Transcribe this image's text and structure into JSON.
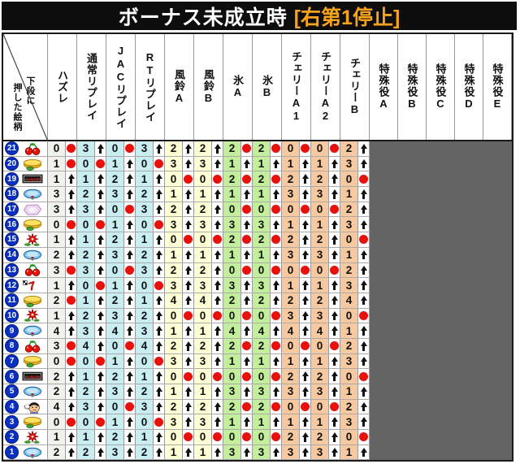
{
  "title": {
    "main": "ボーナス未成立時",
    "bracket": "[右第1停止]"
  },
  "corner_header": {
    "line_right": "下段に",
    "line_left": "押した絵柄",
    "full": "下段に押した絵柄"
  },
  "colors": {
    "title_bg": "#0d0d0d",
    "title_text": "#ffffff",
    "title_accent": "#f7a31c",
    "frame": "#1a1a1a",
    "grid": "#9a9a9a",
    "row_line": "#ababab",
    "header_bg": "#ffffff",
    "label_bg": "#ffffff",
    "mark_bg": "#ffffff",
    "disabled_area": "#646464",
    "dot": "#e8120c",
    "arrow": "#111111",
    "badge_bg": "#0a2fc4",
    "badge_text": "#ffffff"
  },
  "mark_glyphs": {
    "dot": "●",
    "arrow": "↑"
  },
  "chart_data": {
    "type": "table",
    "title": "ボーナス未成立時 [右第1停止]",
    "corner": "下段に押した絵柄",
    "columns": [
      {
        "id": "hazure",
        "label": "ハズレ",
        "bg": "#f1f1ed"
      },
      {
        "id": "tsujo-replay",
        "label": "通常リプレイ",
        "bg": "#c9eef2"
      },
      {
        "id": "jac-replay",
        "label": "JACリプレイ",
        "bg": "#c9eef2"
      },
      {
        "id": "rt-replay",
        "label": "RTリプレイ",
        "bg": "#c9eef2"
      },
      {
        "id": "furin-a",
        "label": "風鈴A",
        "bg": "#ffffd6"
      },
      {
        "id": "furin-b",
        "label": "風鈴B",
        "bg": "#ffffd6"
      },
      {
        "id": "koori-a",
        "label": "氷A",
        "bg": "#c3ee9c"
      },
      {
        "id": "koori-b",
        "label": "氷B",
        "bg": "#c3ee9c"
      },
      {
        "id": "cherry-a1",
        "label": "チェリーA1",
        "bg": "#f6c9a0"
      },
      {
        "id": "cherry-a2",
        "label": "チェリーA2",
        "bg": "#f6c9a0"
      },
      {
        "id": "cherry-b",
        "label": "チェリーB",
        "bg": "#f6c9a0"
      }
    ],
    "special_columns": [
      {
        "id": "special-a",
        "label": "特殊役A"
      },
      {
        "id": "special-b",
        "label": "特殊役B"
      },
      {
        "id": "special-c",
        "label": "特殊役C"
      },
      {
        "id": "special-d",
        "label": "特殊役D"
      },
      {
        "id": "special-e",
        "label": "特殊役E"
      }
    ],
    "rows": [
      {
        "pos": 21,
        "symbol": "cherry",
        "values": [
          0,
          3,
          0,
          3,
          2,
          2,
          2,
          2,
          0,
          0,
          2
        ],
        "marks": [
          "●",
          "↑",
          "●",
          "↑",
          "↑",
          "↑",
          "●",
          "●",
          "●",
          "●",
          "↑"
        ]
      },
      {
        "pos": 20,
        "symbol": "windchime",
        "values": [
          1,
          0,
          1,
          0,
          3,
          3,
          1,
          1,
          1,
          1,
          3
        ],
        "marks": [
          "●",
          "●",
          "↑",
          "●",
          "↑",
          "↑",
          "↑",
          "↑",
          "↑",
          "↑",
          "↑"
        ]
      },
      {
        "pos": 19,
        "symbol": "hanabi-bar",
        "values": [
          1,
          1,
          2,
          1,
          0,
          0,
          2,
          2,
          2,
          2,
          0
        ],
        "marks": [
          "↑",
          "↑",
          "↑",
          "↑",
          "●",
          "●",
          "●",
          "●",
          "↑",
          "↑",
          "●"
        ]
      },
      {
        "pos": 18,
        "symbol": "replay",
        "values": [
          3,
          2,
          3,
          2,
          1,
          1,
          1,
          1,
          3,
          3,
          1
        ],
        "marks": [
          "↑",
          "↑",
          "↑",
          "↑",
          "↑",
          "↑",
          "↑",
          "↑",
          "↑",
          "↑",
          "↑"
        ]
      },
      {
        "pos": 17,
        "symbol": "ice",
        "values": [
          3,
          3,
          0,
          3,
          2,
          2,
          0,
          0,
          0,
          0,
          2
        ],
        "marks": [
          "↑",
          "↑",
          "●",
          "↑",
          "↑",
          "↑",
          "●",
          "●",
          "●",
          "●",
          "↑"
        ]
      },
      {
        "pos": 16,
        "symbol": "windchime",
        "values": [
          0,
          0,
          1,
          0,
          3,
          3,
          3,
          3,
          1,
          1,
          3
        ],
        "marks": [
          "●",
          "●",
          "↑",
          "●",
          "↑",
          "↑",
          "↑",
          "↑",
          "↑",
          "↑",
          "↑"
        ]
      },
      {
        "pos": 15,
        "symbol": "firework-flower",
        "values": [
          1,
          1,
          2,
          1,
          0,
          0,
          2,
          2,
          2,
          2,
          0
        ],
        "marks": [
          "↑",
          "↑",
          "↑",
          "↑",
          "●",
          "●",
          "●",
          "●",
          "↑",
          "↑",
          "●"
        ]
      },
      {
        "pos": 14,
        "symbol": "replay",
        "values": [
          2,
          2,
          3,
          2,
          1,
          1,
          1,
          1,
          3,
          3,
          1
        ],
        "marks": [
          "↑",
          "↑",
          "↑",
          "↑",
          "↑",
          "↑",
          "↑",
          "↑",
          "↑",
          "↑",
          "↑"
        ]
      },
      {
        "pos": 13,
        "symbol": "cherry",
        "values": [
          3,
          3,
          0,
          3,
          2,
          2,
          0,
          0,
          0,
          0,
          2
        ],
        "marks": [
          "●",
          "↑",
          "●",
          "↑",
          "↑",
          "↑",
          "●",
          "●",
          "●",
          "●",
          "↑"
        ]
      },
      {
        "pos": 12,
        "symbol": "red-seven",
        "values": [
          1,
          0,
          1,
          0,
          3,
          3,
          3,
          3,
          1,
          1,
          3
        ],
        "marks": [
          "↑",
          "●",
          "↑",
          "●",
          "↑",
          "↑",
          "↑",
          "↑",
          "↑",
          "↑",
          "↑"
        ]
      },
      {
        "pos": 11,
        "symbol": "windchime",
        "values": [
          2,
          1,
          2,
          1,
          4,
          4,
          2,
          2,
          2,
          2,
          4
        ],
        "marks": [
          "●",
          "↑",
          "↑",
          "↑",
          "↑",
          "↑",
          "↑",
          "↑",
          "↑",
          "↑",
          "↑"
        ]
      },
      {
        "pos": 10,
        "symbol": "firework-flower",
        "values": [
          1,
          2,
          3,
          2,
          0,
          0,
          0,
          0,
          3,
          3,
          0
        ],
        "marks": [
          "↑",
          "↑",
          "↑",
          "↑",
          "●",
          "●",
          "●",
          "●",
          "↑",
          "↑",
          "●"
        ]
      },
      {
        "pos": 9,
        "symbol": "replay",
        "values": [
          4,
          3,
          4,
          3,
          1,
          1,
          4,
          4,
          4,
          4,
          1
        ],
        "marks": [
          "↑",
          "↑",
          "↑",
          "↑",
          "↑",
          "↑",
          "↑",
          "↑",
          "↑",
          "↑",
          "↑"
        ]
      },
      {
        "pos": 8,
        "symbol": "cherry",
        "values": [
          3,
          4,
          0,
          4,
          2,
          2,
          2,
          2,
          0,
          0,
          2
        ],
        "marks": [
          "●",
          "↑",
          "●",
          "↑",
          "↑",
          "↑",
          "●",
          "●",
          "●",
          "●",
          "↑"
        ]
      },
      {
        "pos": 7,
        "symbol": "windchime",
        "values": [
          0,
          0,
          1,
          0,
          3,
          3,
          1,
          1,
          1,
          1,
          3
        ],
        "marks": [
          "●",
          "●",
          "↑",
          "●",
          "↑",
          "↑",
          "↑",
          "↑",
          "↑",
          "↑",
          "↑"
        ]
      },
      {
        "pos": 6,
        "symbol": "hanabi-bar",
        "values": [
          2,
          1,
          2,
          1,
          0,
          0,
          0,
          0,
          2,
          2,
          0
        ],
        "marks": [
          "↑",
          "↑",
          "↑",
          "↑",
          "●",
          "●",
          "●",
          "●",
          "↑",
          "↑",
          "●"
        ]
      },
      {
        "pos": 5,
        "symbol": "replay",
        "values": [
          2,
          2,
          3,
          2,
          1,
          1,
          3,
          3,
          3,
          3,
          1
        ],
        "marks": [
          "↑",
          "↑",
          "↑",
          "↑",
          "↑",
          "↑",
          "↑",
          "↑",
          "↑",
          "↑",
          "↑"
        ]
      },
      {
        "pos": 4,
        "symbol": "donchan",
        "values": [
          4,
          3,
          0,
          3,
          2,
          2,
          2,
          2,
          0,
          0,
          2
        ],
        "marks": [
          "↑",
          "↑",
          "●",
          "↑",
          "↑",
          "↑",
          "●",
          "●",
          "●",
          "●",
          "↑"
        ]
      },
      {
        "pos": 3,
        "symbol": "windchime",
        "values": [
          0,
          0,
          1,
          0,
          3,
          3,
          1,
          1,
          1,
          1,
          3
        ],
        "marks": [
          "●",
          "●",
          "↑",
          "●",
          "↑",
          "↑",
          "↑",
          "↑",
          "↑",
          "↑",
          "↑"
        ]
      },
      {
        "pos": 2,
        "symbol": "firework-flower",
        "values": [
          1,
          1,
          2,
          1,
          0,
          0,
          0,
          0,
          2,
          2,
          0
        ],
        "marks": [
          "↑",
          "↑",
          "↑",
          "↑",
          "●",
          "●",
          "●",
          "●",
          "↑",
          "↑",
          "●"
        ]
      },
      {
        "pos": 1,
        "symbol": "replay",
        "values": [
          2,
          2,
          3,
          2,
          1,
          1,
          3,
          3,
          3,
          3,
          1
        ],
        "marks": [
          "↑",
          "↑",
          "↑",
          "↑",
          "↑",
          "↑",
          "↑",
          "↑",
          "↑",
          "↑",
          "↑"
        ]
      }
    ]
  }
}
